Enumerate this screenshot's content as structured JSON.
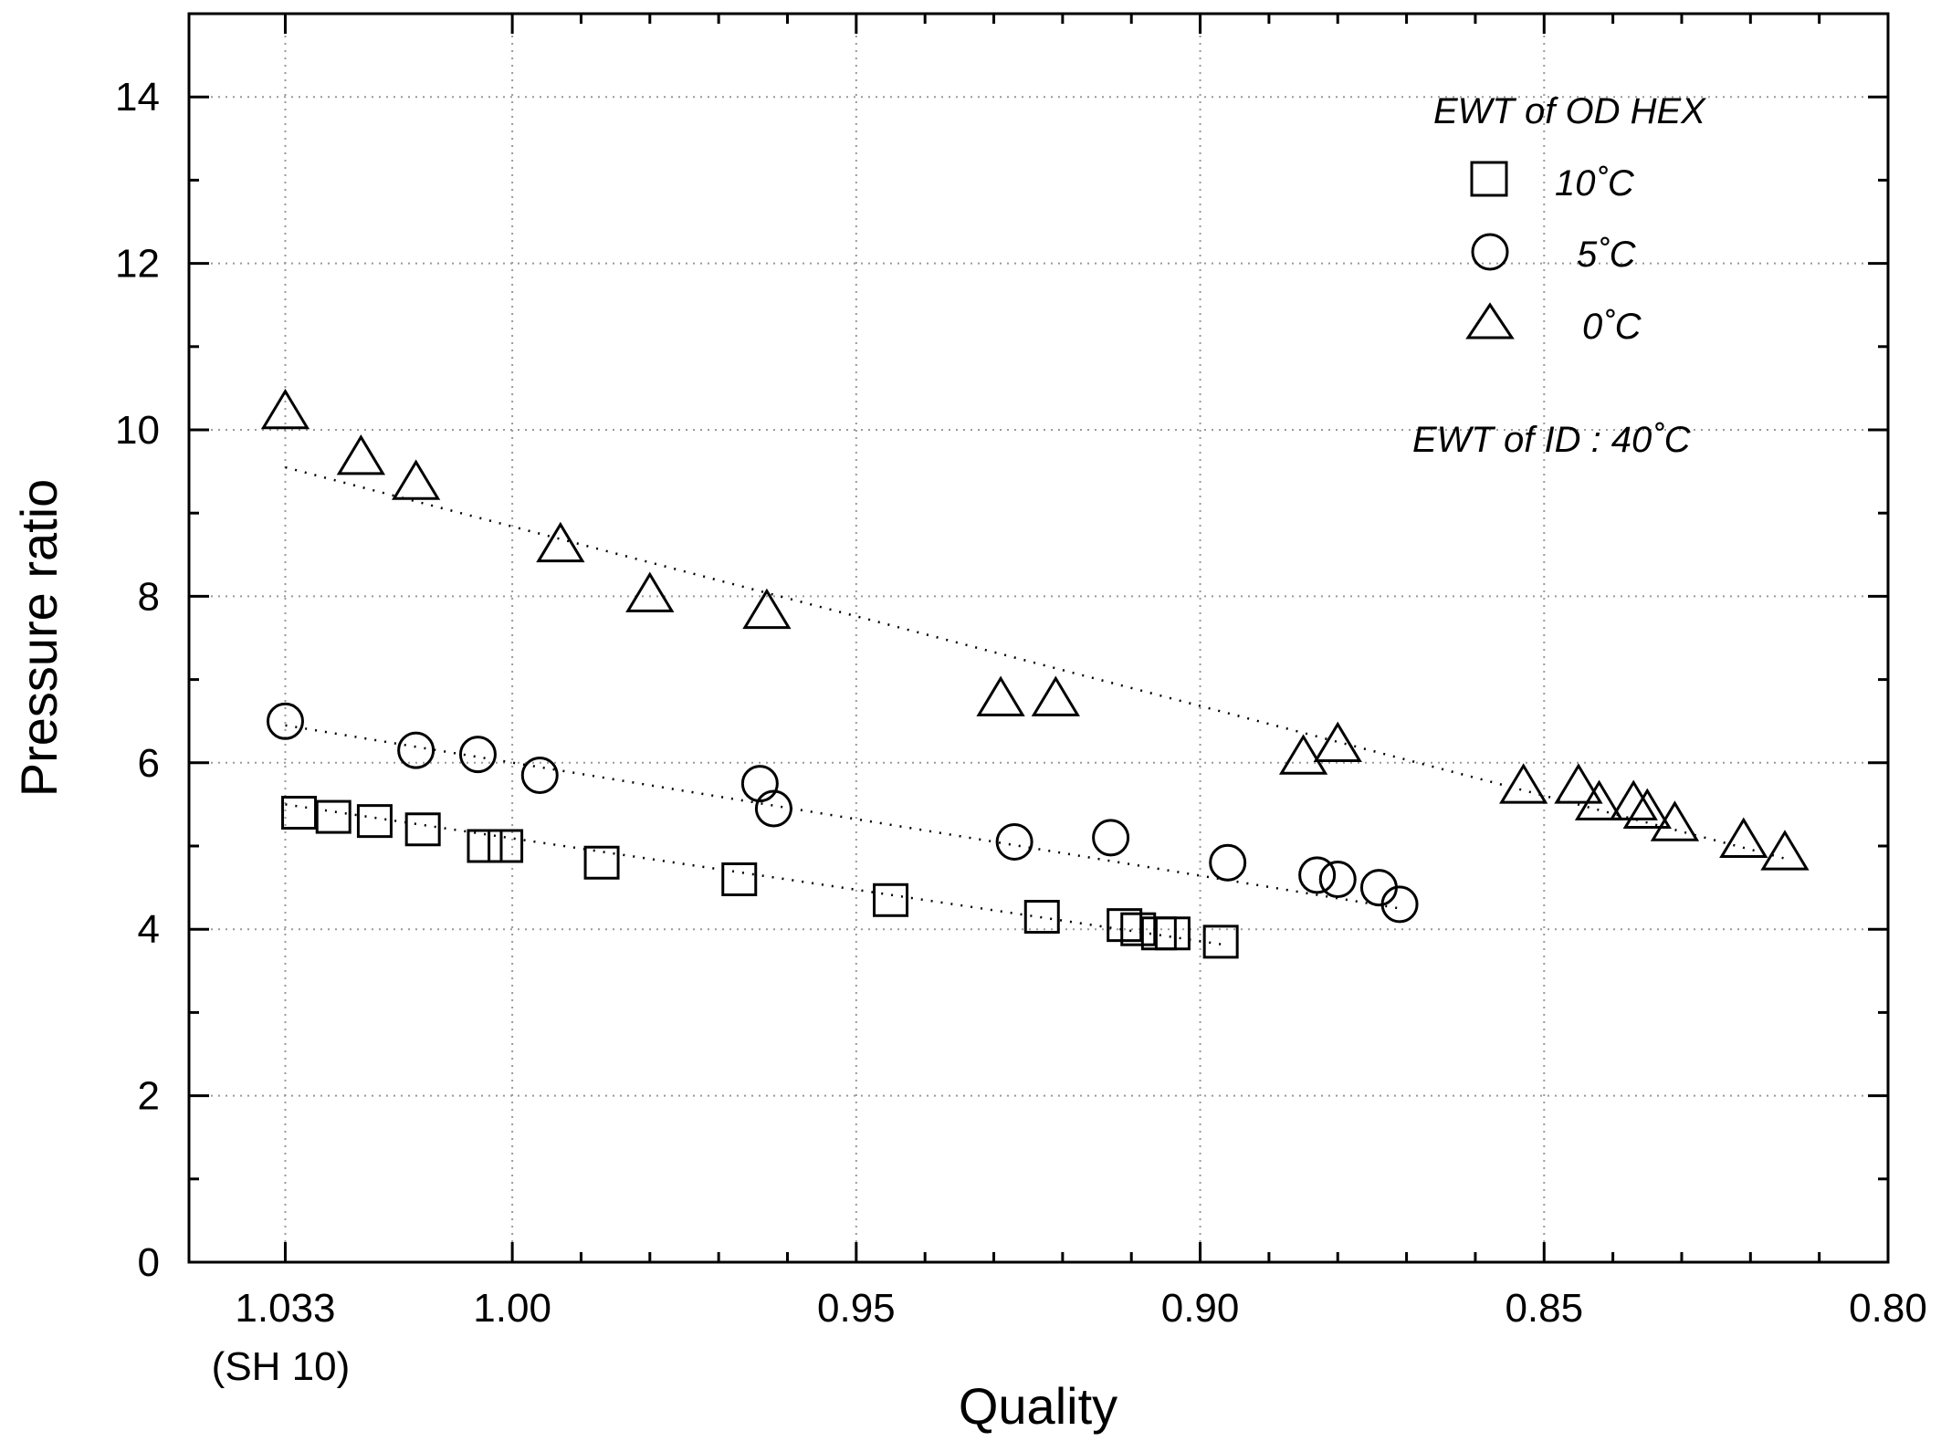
{
  "chart_data": {
    "type": "scatter",
    "xlabel": "Quality",
    "ylabel": "Pressure ratio",
    "xlim": [
      1.047,
      0.8
    ],
    "ylim": [
      0,
      15
    ],
    "x_reversed": true,
    "grid": true,
    "x_ticks": [
      {
        "value": 1.033,
        "label": "1.033",
        "sublabel": "(SH 10)"
      },
      {
        "value": 1.0,
        "label": "1.00"
      },
      {
        "value": 0.95,
        "label": "0.95"
      },
      {
        "value": 0.9,
        "label": "0.90"
      },
      {
        "value": 0.85,
        "label": "0.85"
      },
      {
        "value": 0.8,
        "label": "0.80"
      }
    ],
    "y_ticks": [
      0,
      2,
      4,
      6,
      8,
      10,
      12,
      14
    ],
    "legend": {
      "title": "EWT of OD HEX",
      "placement": "top-right",
      "entries": [
        {
          "marker": "square",
          "label": "10˚C"
        },
        {
          "marker": "circle",
          "label": "5˚C"
        },
        {
          "marker": "triangle",
          "label": "0˚C"
        }
      ],
      "note": "EWT of ID : 40˚C"
    },
    "series": [
      {
        "marker": "square",
        "points": [
          [
            1.031,
            5.4
          ],
          [
            1.026,
            5.35
          ],
          [
            1.02,
            5.3
          ],
          [
            1.013,
            5.2
          ],
          [
            1.004,
            5.0
          ],
          [
            1.001,
            5.0
          ],
          [
            0.987,
            4.8
          ],
          [
            0.967,
            4.6
          ],
          [
            0.945,
            4.35
          ],
          [
            0.923,
            4.15
          ],
          [
            0.911,
            4.05
          ],
          [
            0.909,
            4.0
          ],
          [
            0.906,
            3.95
          ],
          [
            0.904,
            3.95
          ],
          [
            0.897,
            3.85
          ]
        ],
        "fit": [
          [
            1.033,
            5.5
          ],
          [
            0.897,
            3.82
          ]
        ]
      },
      {
        "marker": "circle",
        "points": [
          [
            1.033,
            6.5
          ],
          [
            1.014,
            6.15
          ],
          [
            1.005,
            6.1
          ],
          [
            0.996,
            5.85
          ],
          [
            0.964,
            5.75
          ],
          [
            0.962,
            5.45
          ],
          [
            0.927,
            5.05
          ],
          [
            0.913,
            5.1
          ],
          [
            0.896,
            4.8
          ],
          [
            0.883,
            4.65
          ],
          [
            0.88,
            4.6
          ],
          [
            0.874,
            4.5
          ],
          [
            0.871,
            4.3
          ]
        ],
        "fit": [
          [
            1.033,
            6.45
          ],
          [
            0.871,
            4.25
          ]
        ]
      },
      {
        "marker": "triangle",
        "points": [
          [
            1.033,
            10.2
          ],
          [
            1.022,
            9.65
          ],
          [
            1.014,
            9.35
          ],
          [
            0.993,
            8.6
          ],
          [
            0.98,
            8.0
          ],
          [
            0.963,
            7.8
          ],
          [
            0.929,
            6.75
          ],
          [
            0.921,
            6.75
          ],
          [
            0.885,
            6.05
          ],
          [
            0.88,
            6.2
          ],
          [
            0.853,
            5.7
          ],
          [
            0.845,
            5.7
          ],
          [
            0.842,
            5.5
          ],
          [
            0.837,
            5.5
          ],
          [
            0.835,
            5.4
          ],
          [
            0.831,
            5.25
          ],
          [
            0.821,
            5.05
          ],
          [
            0.815,
            4.9
          ]
        ],
        "fit": [
          [
            1.033,
            9.55
          ],
          [
            0.815,
            4.85
          ]
        ]
      }
    ]
  }
}
